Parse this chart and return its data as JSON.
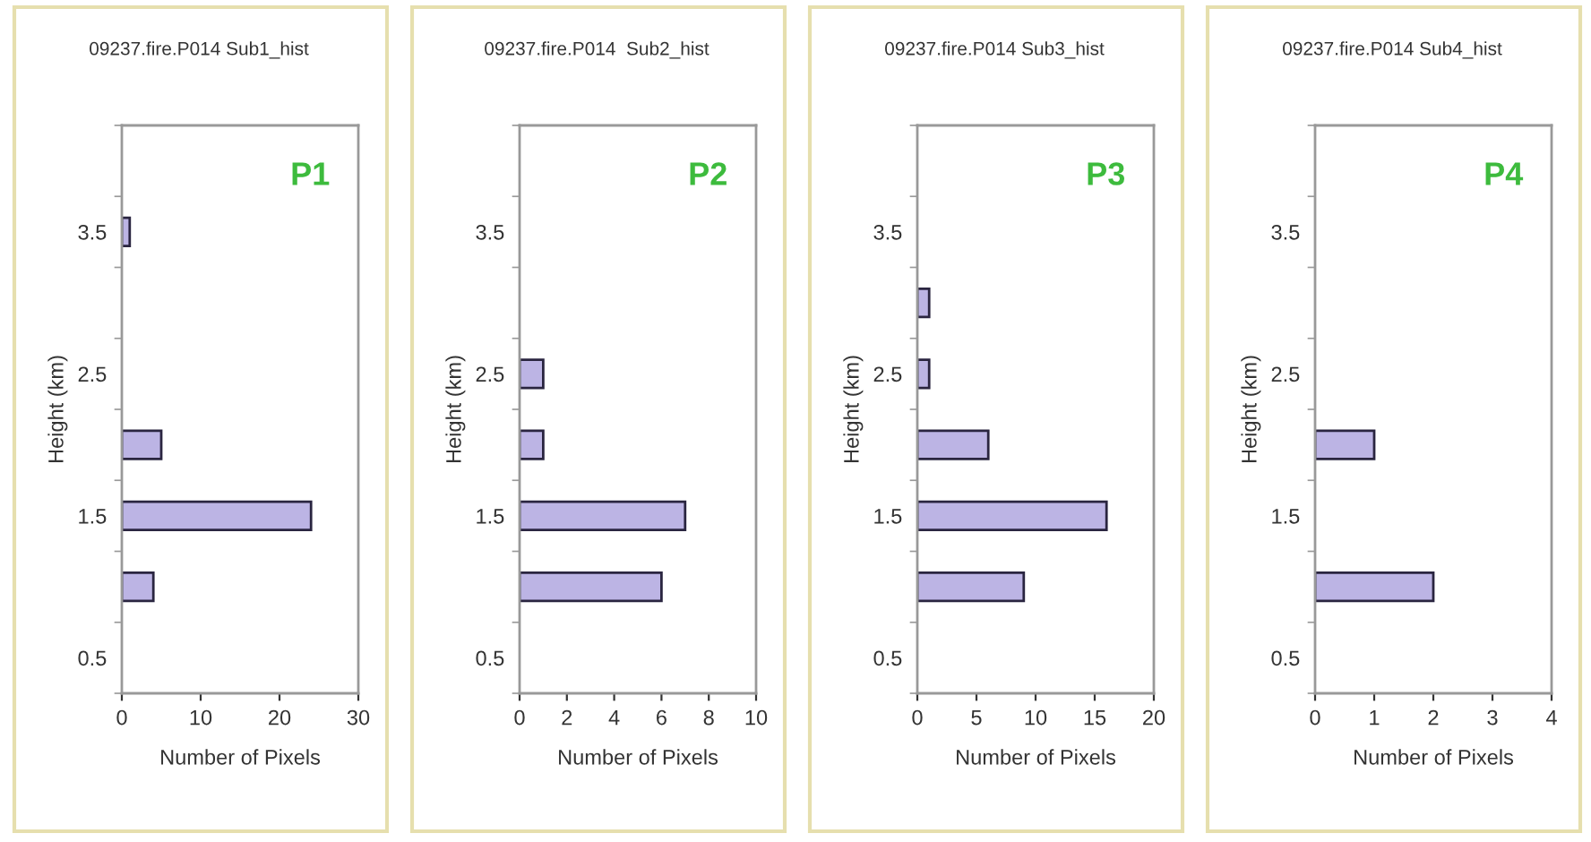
{
  "chart_data": [
    {
      "type": "bar",
      "orientation": "horizontal",
      "title": "09237.fire.P014 Sub1_hist",
      "xlabel": "Number of Pixels",
      "ylabel": "Height (km)",
      "annotations": [
        "P1"
      ],
      "x": [
        1.0,
        1.5,
        2.0,
        3.5
      ],
      "values": [
        4,
        24,
        5,
        1
      ],
      "color": "#bcb4e4",
      "xlim": [
        0,
        30
      ],
      "xticks": [
        0,
        10,
        20,
        30
      ],
      "ylim": [
        0.25,
        4.25
      ],
      "yticks": [
        {
          "value": 0.25,
          "label": null
        },
        0.5,
        {
          "value": 0.75,
          "label": null
        },
        {
          "value": 1.25,
          "label": null
        },
        1.5,
        {
          "value": 1.75,
          "label": null
        },
        {
          "value": 2.25,
          "label": null
        },
        2.5,
        {
          "value": 2.75,
          "label": null
        },
        {
          "value": 3.25,
          "label": null
        },
        3.5,
        {
          "value": 3.75,
          "label": null
        },
        {
          "value": 4.25,
          "label": null
        }
      ]
    },
    {
      "type": "bar",
      "orientation": "horizontal",
      "title": "09237.fire.P014  Sub2_hist",
      "xlabel": "Number of Pixels",
      "ylabel": "Height (km)",
      "annotations": [
        "P2"
      ],
      "x": [
        1.0,
        1.5,
        2.0,
        2.5
      ],
      "values": [
        6,
        7,
        1,
        1
      ],
      "color": "#bcb4e4",
      "xlim": [
        0,
        10
      ],
      "xticks": [
        0,
        2,
        4,
        6,
        8,
        10
      ],
      "ylim": [
        0.25,
        4.25
      ],
      "yticks": [
        {
          "value": 0.25,
          "label": null
        },
        0.5,
        {
          "value": 0.75,
          "label": null
        },
        {
          "value": 1.25,
          "label": null
        },
        1.5,
        {
          "value": 1.75,
          "label": null
        },
        {
          "value": 2.25,
          "label": null
        },
        2.5,
        {
          "value": 2.75,
          "label": null
        },
        {
          "value": 3.25,
          "label": null
        },
        3.5,
        {
          "value": 3.75,
          "label": null
        },
        {
          "value": 4.25,
          "label": null
        }
      ]
    },
    {
      "type": "bar",
      "orientation": "horizontal",
      "title": "09237.fire.P014 Sub3_hist",
      "xlabel": "Number of Pixels",
      "ylabel": "Height (km)",
      "annotations": [
        "P3"
      ],
      "x": [
        1.0,
        1.5,
        2.0,
        2.5,
        3.0
      ],
      "values": [
        9,
        16,
        6,
        1,
        1
      ],
      "color": "#bcb4e4",
      "xlim": [
        0,
        20
      ],
      "xticks": [
        0,
        5,
        10,
        15,
        20
      ],
      "ylim": [
        0.25,
        4.25
      ],
      "yticks": [
        {
          "value": 0.25,
          "label": null
        },
        0.5,
        {
          "value": 0.75,
          "label": null
        },
        {
          "value": 1.25,
          "label": null
        },
        1.5,
        {
          "value": 1.75,
          "label": null
        },
        {
          "value": 2.25,
          "label": null
        },
        2.5,
        {
          "value": 2.75,
          "label": null
        },
        {
          "value": 3.25,
          "label": null
        },
        3.5,
        {
          "value": 3.75,
          "label": null
        },
        {
          "value": 4.25,
          "label": null
        }
      ]
    },
    {
      "type": "bar",
      "orientation": "horizontal",
      "title": "09237.fire.P014 Sub4_hist",
      "xlabel": "Number of Pixels",
      "ylabel": "Height (km)",
      "annotations": [
        "P4"
      ],
      "x": [
        1.0,
        2.0
      ],
      "values": [
        2,
        1
      ],
      "color": "#bcb4e4",
      "xlim": [
        0,
        4
      ],
      "xticks": [
        0,
        1,
        2,
        3,
        4
      ],
      "ylim": [
        0.25,
        4.25
      ],
      "yticks": [
        {
          "value": 0.25,
          "label": null
        },
        0.5,
        {
          "value": 0.75,
          "label": null
        },
        {
          "value": 1.25,
          "label": null
        },
        1.5,
        {
          "value": 1.75,
          "label": null
        },
        {
          "value": 2.25,
          "label": null
        },
        2.5,
        {
          "value": 2.75,
          "label": null
        },
        {
          "value": 3.25,
          "label": null
        },
        3.5,
        {
          "value": 3.75,
          "label": null
        },
        {
          "value": 4.25,
          "label": null
        }
      ]
    }
  ]
}
